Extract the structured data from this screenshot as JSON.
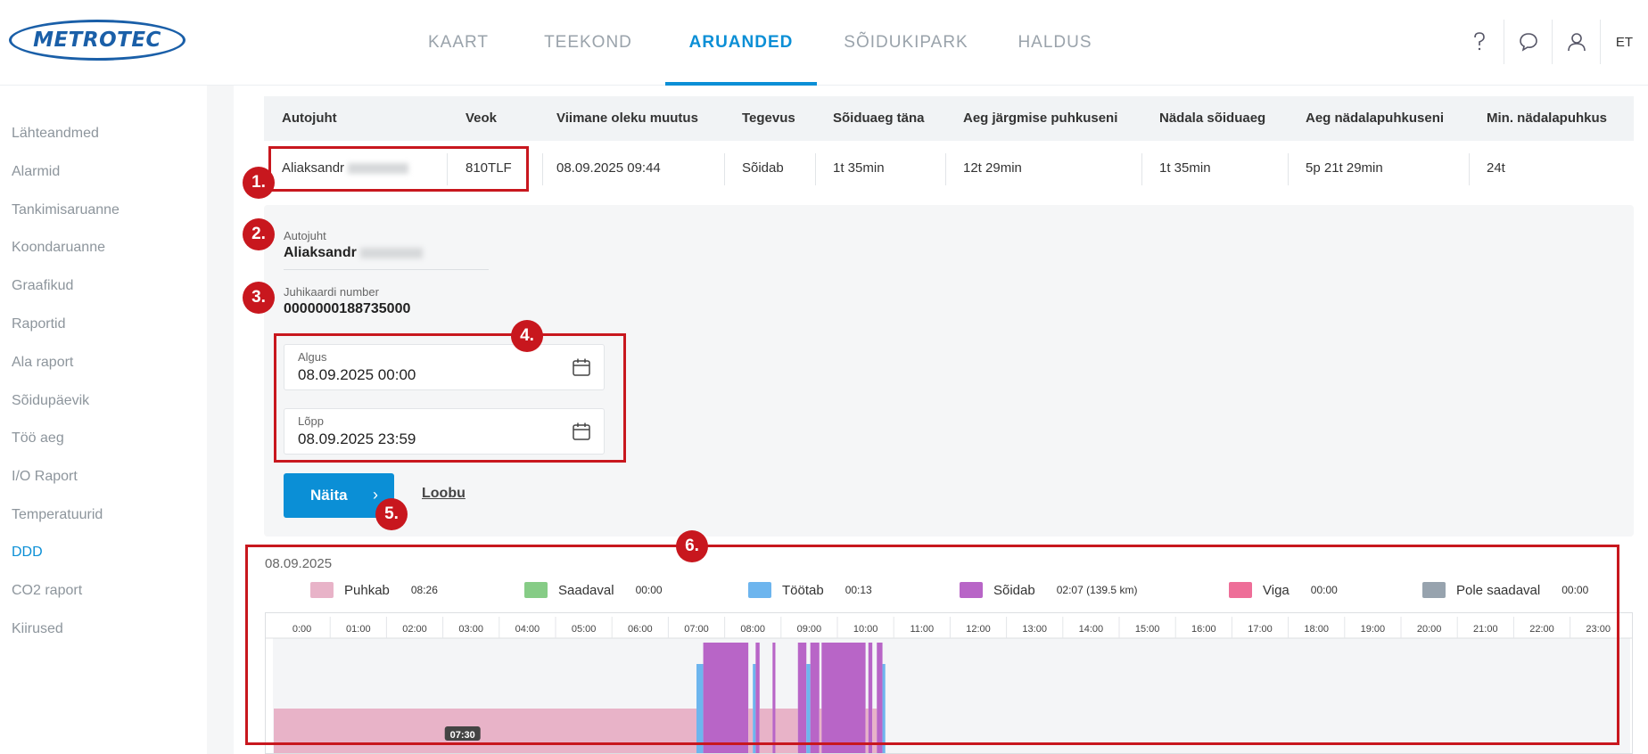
{
  "header": {
    "logo": "METROTEC",
    "nav": [
      "KAART",
      "TEEKOND",
      "ARUANDED",
      "SÕIDUKIPARK",
      "HALDUS"
    ],
    "active_nav": "ARUANDED",
    "icons": [
      "help-icon",
      "chat-icon",
      "user-icon"
    ],
    "lang": "ET"
  },
  "sidebar": {
    "items": [
      "Lähteandmed",
      "Alarmid",
      "Tankimisaruanne",
      "Koondaruanne",
      "Graafikud",
      "Raportid",
      "Ala raport",
      "Sõidupäevik",
      "Töö aeg",
      "I/O Raport",
      "Temperatuurid",
      "DDD",
      "CO2 raport",
      "Kiirused"
    ],
    "active": "DDD"
  },
  "table": {
    "headers": [
      "Autojuht",
      "Veok",
      "Viimane oleku muutus",
      "Tegevus",
      "Sõiduaeg täna",
      "Aeg järgmise puhkuseni",
      "Nädala sõiduaeg",
      "Aeg nädalapuhkuseni",
      "Min. nädalapuhkus"
    ],
    "row": [
      "Aliaksandr",
      "810TLF",
      "08.09.2025 09:44",
      "Sõidab",
      "1t 35min",
      "12t 29min",
      "1t 35min",
      "5p 21t 29min",
      "24t"
    ]
  },
  "form": {
    "driver_label": "Autojuht",
    "driver_value": "Aliaksandr",
    "card_label": "Juhikaardi number",
    "card_value": "0000000188735000",
    "start_label": "Algus",
    "start_value": "08.09.2025 00:00",
    "end_label": "Lõpp",
    "end_value": "08.09.2025 23:59",
    "show_button": "Näita",
    "cancel_link": "Loobu"
  },
  "annotations": [
    "1.",
    "2.",
    "3.",
    "4.",
    "5.",
    "6."
  ],
  "chart_data": {
    "type": "timeline",
    "date": "08.09.2025",
    "legend": [
      {
        "name": "Puhkab",
        "value": "08:26",
        "color": "#e8b3c8"
      },
      {
        "name": "Saadaval",
        "value": "00:00",
        "color": "#86cc86"
      },
      {
        "name": "Töötab",
        "value": "00:13",
        "color": "#6db5ee"
      },
      {
        "name": "Sõidab",
        "value": "02:07 (139.5 km)",
        "color": "#b865c7"
      },
      {
        "name": "Viga",
        "value": "00:00",
        "color": "#ee6e98"
      },
      {
        "name": "Pole saadaval",
        "value": "00:00",
        "color": "#97a3ae"
      }
    ],
    "hour_labels": [
      "0:00",
      "01:00",
      "02:00",
      "03:00",
      "04:00",
      "05:00",
      "06:00",
      "07:00",
      "08:00",
      "09:00",
      "10:00",
      "11:00",
      "12:00",
      "13:00",
      "14:00",
      "15:00",
      "16:00",
      "17:00",
      "18:00",
      "19:00",
      "20:00",
      "21:00",
      "22:00",
      "23:00"
    ],
    "x_range_hours": [
      0,
      24
    ],
    "segments": [
      {
        "type": "Puhkab",
        "start": 0.0,
        "end": 7.5
      },
      {
        "type": "Töötab",
        "start": 7.5,
        "end": 7.62
      },
      {
        "type": "Sõidab",
        "start": 7.62,
        "end": 8.42
      },
      {
        "type": "Puhkab",
        "start": 8.42,
        "end": 8.5
      },
      {
        "type": "Töötab",
        "start": 8.5,
        "end": 8.55
      },
      {
        "type": "Sõidab",
        "start": 8.55,
        "end": 8.62
      },
      {
        "type": "Puhkab",
        "start": 8.62,
        "end": 8.85
      },
      {
        "type": "Sõidab",
        "start": 8.85,
        "end": 8.9
      },
      {
        "type": "Puhkab",
        "start": 8.9,
        "end": 9.3
      },
      {
        "type": "Sõidab",
        "start": 9.3,
        "end": 9.45
      },
      {
        "type": "Töötab",
        "start": 9.45,
        "end": 9.52
      },
      {
        "type": "Sõidab",
        "start": 9.52,
        "end": 9.68
      },
      {
        "type": "Puhkab",
        "start": 9.68,
        "end": 9.72
      },
      {
        "type": "Sõidab",
        "start": 9.72,
        "end": 10.5
      },
      {
        "type": "Puhkab",
        "start": 10.5,
        "end": 10.55
      },
      {
        "type": "Sõidab",
        "start": 10.55,
        "end": 10.62
      },
      {
        "type": "Puhkab",
        "start": 10.62,
        "end": 10.7
      },
      {
        "type": "Sõidab",
        "start": 10.7,
        "end": 10.8
      },
      {
        "type": "Töötab",
        "start": 10.8,
        "end": 10.85
      }
    ],
    "duration_label": "07:30"
  }
}
